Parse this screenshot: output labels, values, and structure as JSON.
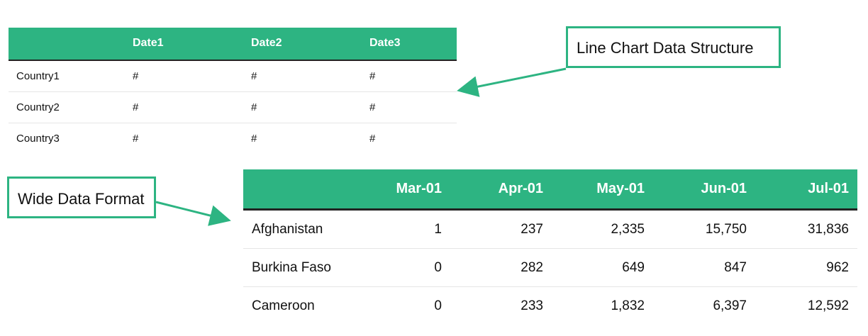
{
  "callouts": {
    "line_chart": "Line Chart Data Structure",
    "wide_format": "Wide Data Format"
  },
  "schema_table": {
    "headers": [
      "",
      "Date1",
      "Date2",
      "Date3"
    ],
    "rows": [
      {
        "label": "Country1",
        "values": [
          "#",
          "#",
          "#"
        ]
      },
      {
        "label": "Country2",
        "values": [
          "#",
          "#",
          "#"
        ]
      },
      {
        "label": "Country3",
        "values": [
          "#",
          "#",
          "#"
        ]
      }
    ]
  },
  "data_table": {
    "headers": [
      "",
      "Mar-01",
      "Apr-01",
      "May-01",
      "Jun-01",
      "Jul-01"
    ],
    "rows": [
      {
        "label": "Afghanistan",
        "values": [
          "1",
          "237",
          "2,335",
          "15,750",
          "31,836"
        ]
      },
      {
        "label": "Burkina Faso",
        "values": [
          "0",
          "282",
          "649",
          "847",
          "962"
        ]
      },
      {
        "label": "Cameroon",
        "values": [
          "0",
          "233",
          "1,832",
          "6,397",
          "12,592"
        ]
      }
    ]
  },
  "colors": {
    "accent": "#2db482",
    "header_text": "#ffffff",
    "rule": "#222222"
  }
}
